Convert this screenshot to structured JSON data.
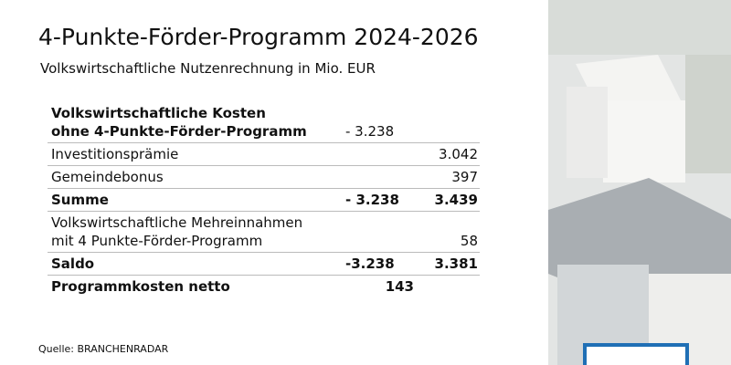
{
  "header": {
    "title": "4-Punkte-Förder-Programm 2024-2026",
    "subtitle": "Volkswirtschaftliche Nutzenrechnung in Mio. EUR"
  },
  "table": {
    "rows": [
      {
        "label": [
          "Volkswirtschaftliche Kosten",
          "ohne 4-Punkte-Förder-Programm"
        ],
        "bold": true,
        "costs": "- 3.238"
      },
      {
        "label": [
          "Investitionsprämie"
        ],
        "bold": false,
        "benefits": "3.042"
      },
      {
        "label": [
          "Gemeindebonus"
        ],
        "bold": false,
        "benefits": "397"
      },
      {
        "label": [
          "Summe"
        ],
        "bold": true,
        "costs": "- 3.238",
        "benefits": "3.439"
      },
      {
        "label": [
          "Volkswirtschaftliche Mehreinnahmen",
          "mit 4 Punkte-Förder-Programm"
        ],
        "bold": false,
        "benefits": "58"
      },
      {
        "label": [
          "Saldo"
        ],
        "bold": true,
        "costs": "-3.238",
        "benefits": "3.381"
      },
      {
        "label": [
          "Programmkosten netto"
        ],
        "bold": true,
        "net": "143"
      }
    ]
  },
  "footer": {
    "source": "Quelle: BRANCHENRADAR"
  }
}
